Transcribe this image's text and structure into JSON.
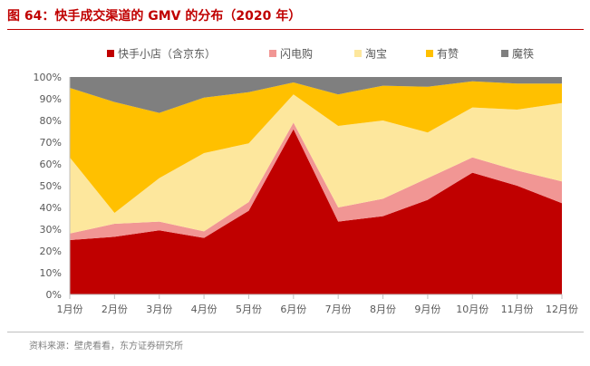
{
  "title": "图 64：快手成交渠道的 GMV 的分布（2020 年）",
  "source": "资料来源：壁虎看看，东方证券研究所",
  "chart_data": {
    "type": "area",
    "stacked": true,
    "categories": [
      "1月份",
      "2月份",
      "3月份",
      "4月份",
      "5月份",
      "6月份",
      "7月份",
      "8月份",
      "9月份",
      "10月份",
      "11月份",
      "12月份"
    ],
    "series": [
      {
        "name": "快手小店（含京东）",
        "color": "#c00000",
        "values": [
          25,
          26.5,
          29.5,
          26,
          38.5,
          76,
          33.5,
          36,
          43.5,
          56,
          50,
          42
        ]
      },
      {
        "name": "闪电购",
        "color": "#f19694",
        "values": [
          3,
          6,
          4,
          3,
          4,
          3,
          6.5,
          8,
          10,
          7,
          7,
          10
        ]
      },
      {
        "name": "淘宝",
        "color": "#fde79d",
        "values": [
          35,
          5,
          20,
          36,
          27,
          13,
          37.5,
          36,
          21,
          23,
          28,
          36
        ]
      },
      {
        "name": "有赞",
        "color": "#ffc000",
        "values": [
          32,
          51,
          30,
          25.5,
          23.5,
          5.5,
          14.5,
          16,
          21,
          12,
          12,
          9
        ]
      },
      {
        "name": "魔筷",
        "color": "#7f7f7f",
        "values": [
          5,
          11.5,
          16.5,
          9.5,
          7,
          2.5,
          8,
          4,
          4.5,
          2,
          3,
          3
        ]
      }
    ],
    "y_ticks": [
      "0%",
      "10%",
      "20%",
      "30%",
      "40%",
      "50%",
      "60%",
      "70%",
      "80%",
      "90%",
      "100%"
    ],
    "ylim": [
      0,
      100
    ],
    "legend_position": "top",
    "grid": false
  }
}
